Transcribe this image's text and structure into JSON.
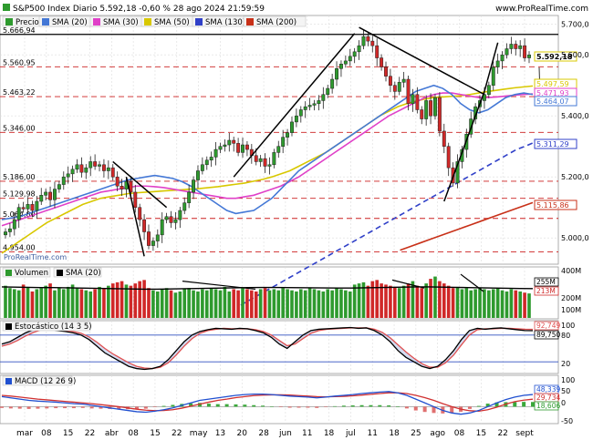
{
  "header": {
    "title": "S&P500 Index Diario 5.592,18 -0,60 % 28 ago 2024 21:59:59",
    "source": "www.ProRealTime.com"
  },
  "watermark": "ProRealTime.com",
  "x_ticks": [
    "mar",
    "08",
    "15",
    "22",
    "abr",
    "08",
    "15",
    "22",
    "may",
    "13",
    "20",
    "28",
    "jun",
    "11",
    "18",
    "jul",
    "11",
    "18",
    "25",
    "ago",
    "08",
    "15",
    "22",
    "sept"
  ],
  "colors": {
    "candle_up": "#2e9a2e",
    "candle_down": "#d02828",
    "sma20": "#4478d6",
    "sma30": "#e040c8",
    "sma50": "#d8c800",
    "sma130": "#3040c8",
    "sma200": "#c83018",
    "hline": "#cc2020",
    "trend": "#000000",
    "vol_avg": "#000000",
    "stoch_k": "#000000",
    "stoch_d": "#e05050",
    "macd_line": "#2050d0",
    "macd_signal": "#d03030"
  },
  "chart_data": [
    {
      "type": "candlestick",
      "panel": "price",
      "legend": [
        {
          "name": "Precio",
          "color": "#2e9a2e"
        },
        {
          "name": "SMA (20)",
          "color": "#4478d6"
        },
        {
          "name": "SMA (30)",
          "color": "#e040c8"
        },
        {
          "name": "SMA (50)",
          "color": "#d8c800"
        },
        {
          "name": "SMA (130)",
          "color": "#3040c8"
        },
        {
          "name": "SMA (200)",
          "color": "#c83018"
        }
      ],
      "ylim": [
        4920,
        5720
      ],
      "y_ticks": [
        5700,
        5600,
        5400,
        5200,
        5000
      ],
      "left_labels": [
        5666.94,
        5560.95,
        5463.22,
        5346.0,
        5186.0,
        5129.98,
        5064.0,
        4954.0
      ],
      "right_badges": [
        {
          "value": "5.592,18",
          "color": "#d8c800"
        },
        {
          "value": "5.497,59",
          "color": "#d8c800"
        },
        {
          "value": "5.471,93",
          "color": "#e040c8"
        },
        {
          "value": "5.464,07",
          "color": "#4478d6"
        },
        {
          "value": "5.311,29",
          "color": "#3040c8"
        },
        {
          "value": "5.115,86",
          "color": "#c83018"
        }
      ],
      "hlines": [
        5666.94,
        5560.95,
        5463.22,
        5346.0,
        5186.0,
        5129.98,
        5064.0,
        4954.0
      ],
      "close": [
        5020,
        5030,
        5060,
        5100,
        5095,
        5110,
        5090,
        5120,
        5140,
        5150,
        5125,
        5160,
        5175,
        5200,
        5210,
        5225,
        5240,
        5215,
        5230,
        5250,
        5235,
        5240,
        5220,
        5230,
        5200,
        5170,
        5160,
        5185,
        5150,
        5100,
        5060,
        5020,
        4975,
        4990,
        5010,
        5060,
        5070,
        5050,
        5060,
        5090,
        5115,
        5150,
        5190,
        5220,
        5240,
        5255,
        5265,
        5290,
        5300,
        5305,
        5320,
        5310,
        5280,
        5305,
        5290,
        5270,
        5250,
        5260,
        5235,
        5240,
        5280,
        5300,
        5330,
        5345,
        5380,
        5400,
        5420,
        5430,
        5435,
        5440,
        5450,
        5470,
        5490,
        5520,
        5555,
        5570,
        5580,
        5595,
        5610,
        5630,
        5660,
        5645,
        5630,
        5590,
        5560,
        5530,
        5500,
        5480,
        5510,
        5520,
        5440,
        5470,
        5420,
        5390,
        5450,
        5400,
        5460,
        5350,
        5300,
        5230,
        5180,
        5250,
        5290,
        5340,
        5390,
        5430,
        5450,
        5470,
        5500,
        5560,
        5580,
        5600,
        5620,
        5635,
        5620,
        5630,
        5590,
        5600
      ],
      "sma20": [
        5060,
        5065,
        5070,
        5080,
        5090,
        5100,
        5110,
        5120,
        5130,
        5140,
        5150,
        5160,
        5170,
        5180,
        5190,
        5195,
        5200,
        5205,
        5200,
        5195,
        5185,
        5170,
        5150,
        5130,
        5110,
        5090,
        5080,
        5085,
        5090,
        5110,
        5130,
        5160,
        5190,
        5220,
        5240,
        5260,
        5280,
        5300,
        5320,
        5340,
        5360,
        5380,
        5400,
        5420,
        5440,
        5460,
        5480,
        5490,
        5500,
        5490,
        5470,
        5440,
        5420,
        5410,
        5420,
        5440,
        5460,
        5470,
        5475,
        5470
      ],
      "sma30": [
        5040,
        5050,
        5060,
        5070,
        5080,
        5090,
        5100,
        5110,
        5120,
        5130,
        5140,
        5150,
        5155,
        5160,
        5165,
        5170,
        5170,
        5168,
        5165,
        5160,
        5155,
        5150,
        5145,
        5140,
        5135,
        5130,
        5130,
        5135,
        5140,
        5150,
        5160,
        5170,
        5185,
        5200,
        5220,
        5240,
        5260,
        5280,
        5300,
        5320,
        5340,
        5360,
        5380,
        5400,
        5415,
        5430,
        5445,
        5460,
        5470,
        5475,
        5475,
        5470,
        5465,
        5460,
        5460,
        5462,
        5465,
        5468,
        5470,
        5472
      ],
      "sma50": [
        4950,
        4970,
        4990,
        5010,
        5030,
        5050,
        5065,
        5080,
        5095,
        5110,
        5120,
        5130,
        5135,
        5140,
        5145,
        5148,
        5150,
        5152,
        5154,
        5156,
        5158,
        5160,
        5162,
        5165,
        5168,
        5172,
        5176,
        5180,
        5186,
        5192,
        5200,
        5210,
        5220,
        5235,
        5250,
        5265,
        5280,
        5300,
        5320,
        5340,
        5360,
        5380,
        5400,
        5415,
        5430,
        5440,
        5448,
        5455,
        5460,
        5462,
        5464,
        5466,
        5470,
        5475,
        5480,
        5484,
        5488,
        5492,
        5495,
        5498
      ],
      "sma130": [
        4780,
        4795,
        4810,
        4825,
        4840,
        4855,
        4870,
        4885,
        4900,
        4915,
        4930,
        4945,
        4960,
        4975,
        4990,
        5005,
        5020,
        5035,
        5050,
        5065,
        5080,
        5095,
        5110,
        5125,
        5140,
        5155,
        5170,
        5185,
        5200,
        5215,
        5230,
        5245,
        5260,
        5275,
        5290,
        5300,
        5311
      ],
      "sma200": [
        4960,
        4972,
        4984,
        4996,
        5008,
        5020,
        5032,
        5044,
        5056,
        5068,
        5080,
        5092,
        5104,
        5116
      ],
      "trendlines": [
        {
          "from": [
            24,
            5250
          ],
          "to": [
            36,
            5100
          ]
        },
        {
          "from": [
            27,
            5200
          ],
          "to": [
            31,
            4940
          ]
        },
        {
          "from": [
            51,
            5200
          ],
          "to": [
            78,
            5670
          ]
        },
        {
          "from": [
            79,
            5690
          ],
          "to": [
            107,
            5470
          ]
        },
        {
          "from": [
            98,
            5120
          ],
          "to": [
            107,
            5480
          ]
        },
        {
          "from": [
            107,
            5480
          ],
          "to": [
            110,
            5640
          ]
        }
      ]
    },
    {
      "type": "bar",
      "panel": "volume",
      "legend": [
        {
          "name": "Volumen",
          "color": "#2e9a2e"
        },
        {
          "name": "SMA (20)",
          "color": "#000000"
        }
      ],
      "ylim": [
        0,
        420
      ],
      "y_ticks": [
        "400M",
        "200M",
        "100M"
      ],
      "right_badges": [
        {
          "value": "255M",
          "color": "#000000"
        },
        {
          "value": "213M",
          "color": "#d02828"
        }
      ],
      "values": [
        280,
        260,
        250,
        240,
        290,
        270,
        230,
        250,
        260,
        280,
        300,
        240,
        260,
        250,
        270,
        290,
        260,
        250,
        240,
        230,
        250,
        270,
        260,
        280,
        300,
        310,
        320,
        290,
        280,
        300,
        320,
        330,
        260,
        240,
        230,
        250,
        260,
        240,
        220,
        230,
        250,
        260,
        240,
        230,
        250,
        240,
        260,
        250,
        240,
        270,
        230,
        250,
        240,
        260,
        250,
        240,
        230,
        250,
        260,
        240,
        250,
        240,
        260,
        250,
        240,
        230,
        250,
        240,
        260,
        250,
        240,
        230,
        250,
        240,
        260,
        250,
        240,
        230,
        290,
        300,
        310,
        280,
        320,
        330,
        300,
        290,
        280,
        270,
        260,
        280,
        300,
        320,
        280,
        260,
        300,
        340,
        360,
        320,
        300,
        280,
        260,
        270,
        250,
        260,
        240,
        250,
        260,
        250,
        240,
        250,
        260,
        240,
        230,
        250,
        240,
        230,
        220,
        213
      ],
      "avg": [
        270,
        268,
        266,
        264,
        264,
        262,
        260,
        258,
        256,
        254,
        252,
        250,
        250,
        252,
        254,
        256,
        258,
        260,
        262,
        264,
        265,
        265,
        264,
        263,
        262,
        261,
        260,
        260,
        262,
        264,
        266,
        268,
        270,
        270,
        268,
        266,
        264,
        262,
        260,
        258,
        256,
        255
      ]
    },
    {
      "type": "line",
      "panel": "stochastic",
      "legend": [
        {
          "name": "Estocástico (14 3 5)",
          "color": "#000000"
        }
      ],
      "ylim": [
        0,
        100
      ],
      "y_ticks": [
        "100",
        "80",
        "20"
      ],
      "right_badges": [
        {
          "value": "92,749",
          "color": "#e05050"
        },
        {
          "value": "89,750",
          "color": "#000000"
        }
      ],
      "k": [
        60,
        65,
        75,
        85,
        92,
        95,
        93,
        90,
        88,
        85,
        80,
        70,
        55,
        40,
        30,
        20,
        10,
        5,
        3,
        5,
        10,
        25,
        45,
        65,
        80,
        88,
        92,
        95,
        94,
        93,
        95,
        94,
        90,
        85,
        75,
        60,
        50,
        65,
        80,
        90,
        93,
        94,
        95,
        96,
        97,
        95,
        96,
        90,
        80,
        65,
        45,
        30,
        20,
        10,
        5,
        10,
        25,
        45,
        70,
        90,
        95,
        93,
        95,
        96,
        94,
        92,
        90,
        89.75
      ],
      "d": [
        55,
        60,
        68,
        78,
        86,
        92,
        94,
        92,
        90,
        88,
        84,
        76,
        64,
        50,
        38,
        28,
        18,
        10,
        6,
        5,
        8,
        18,
        35,
        55,
        72,
        84,
        90,
        93,
        95,
        94,
        94,
        94,
        92,
        88,
        80,
        68,
        56,
        60,
        72,
        84,
        90,
        93,
        94,
        95,
        96,
        96,
        96,
        93,
        86,
        74,
        58,
        42,
        28,
        16,
        8,
        8,
        18,
        35,
        58,
        80,
        92,
        94,
        94,
        95,
        95,
        94,
        93,
        92.749
      ]
    },
    {
      "type": "line",
      "panel": "macd",
      "legend": [
        {
          "name": "MACD (12 26 9)",
          "color": "#2050d0"
        }
      ],
      "ylim": [
        -60,
        110
      ],
      "y_ticks": [
        "100",
        "50",
        "0",
        "-50"
      ],
      "right_badges": [
        {
          "value": "48,339",
          "color": "#2050d0"
        },
        {
          "value": "29,734",
          "color": "#d03030"
        },
        {
          "value": "18,606",
          "color": "#2e9a2e"
        }
      ],
      "macd": [
        40,
        35,
        30,
        25,
        22,
        20,
        18,
        15,
        12,
        10,
        5,
        0,
        -5,
        -10,
        -15,
        -20,
        -22,
        -18,
        -12,
        -5,
        5,
        15,
        25,
        30,
        35,
        40,
        45,
        48,
        50,
        50,
        48,
        45,
        42,
        40,
        38,
        35,
        38,
        42,
        45,
        48,
        52,
        55,
        58,
        60,
        55,
        45,
        30,
        15,
        0,
        -15,
        -25,
        -30,
        -25,
        -15,
        0,
        15,
        28,
        38,
        45,
        48.339
      ],
      "signal": [
        45,
        42,
        38,
        34,
        30,
        27,
        24,
        21,
        18,
        15,
        12,
        8,
        4,
        0,
        -5,
        -10,
        -14,
        -16,
        -15,
        -12,
        -6,
        2,
        10,
        18,
        25,
        30,
        36,
        40,
        44,
        46,
        47,
        47,
        46,
        44,
        42,
        40,
        39,
        40,
        41,
        43,
        46,
        49,
        52,
        55,
        55,
        52,
        45,
        36,
        25,
        12,
        0,
        -10,
        -16,
        -18,
        -12,
        -2,
        10,
        20,
        26,
        29.734
      ],
      "hist": [
        -5,
        -7,
        -8,
        -9,
        -8,
        -7,
        -6,
        -6,
        -6,
        -5,
        -7,
        -8,
        -9,
        -10,
        -10,
        -10,
        -8,
        -2,
        3,
        7,
        11,
        13,
        15,
        12,
        10,
        10,
        9,
        8,
        6,
        4,
        1,
        -2,
        -4,
        -4,
        -4,
        -5,
        -1,
        2,
        4,
        5,
        6,
        6,
        6,
        5,
        0,
        -7,
        -15,
        -21,
        -25,
        -27,
        -25,
        -20,
        -9,
        3,
        12,
        17,
        18,
        18,
        19,
        18.606
      ]
    }
  ]
}
